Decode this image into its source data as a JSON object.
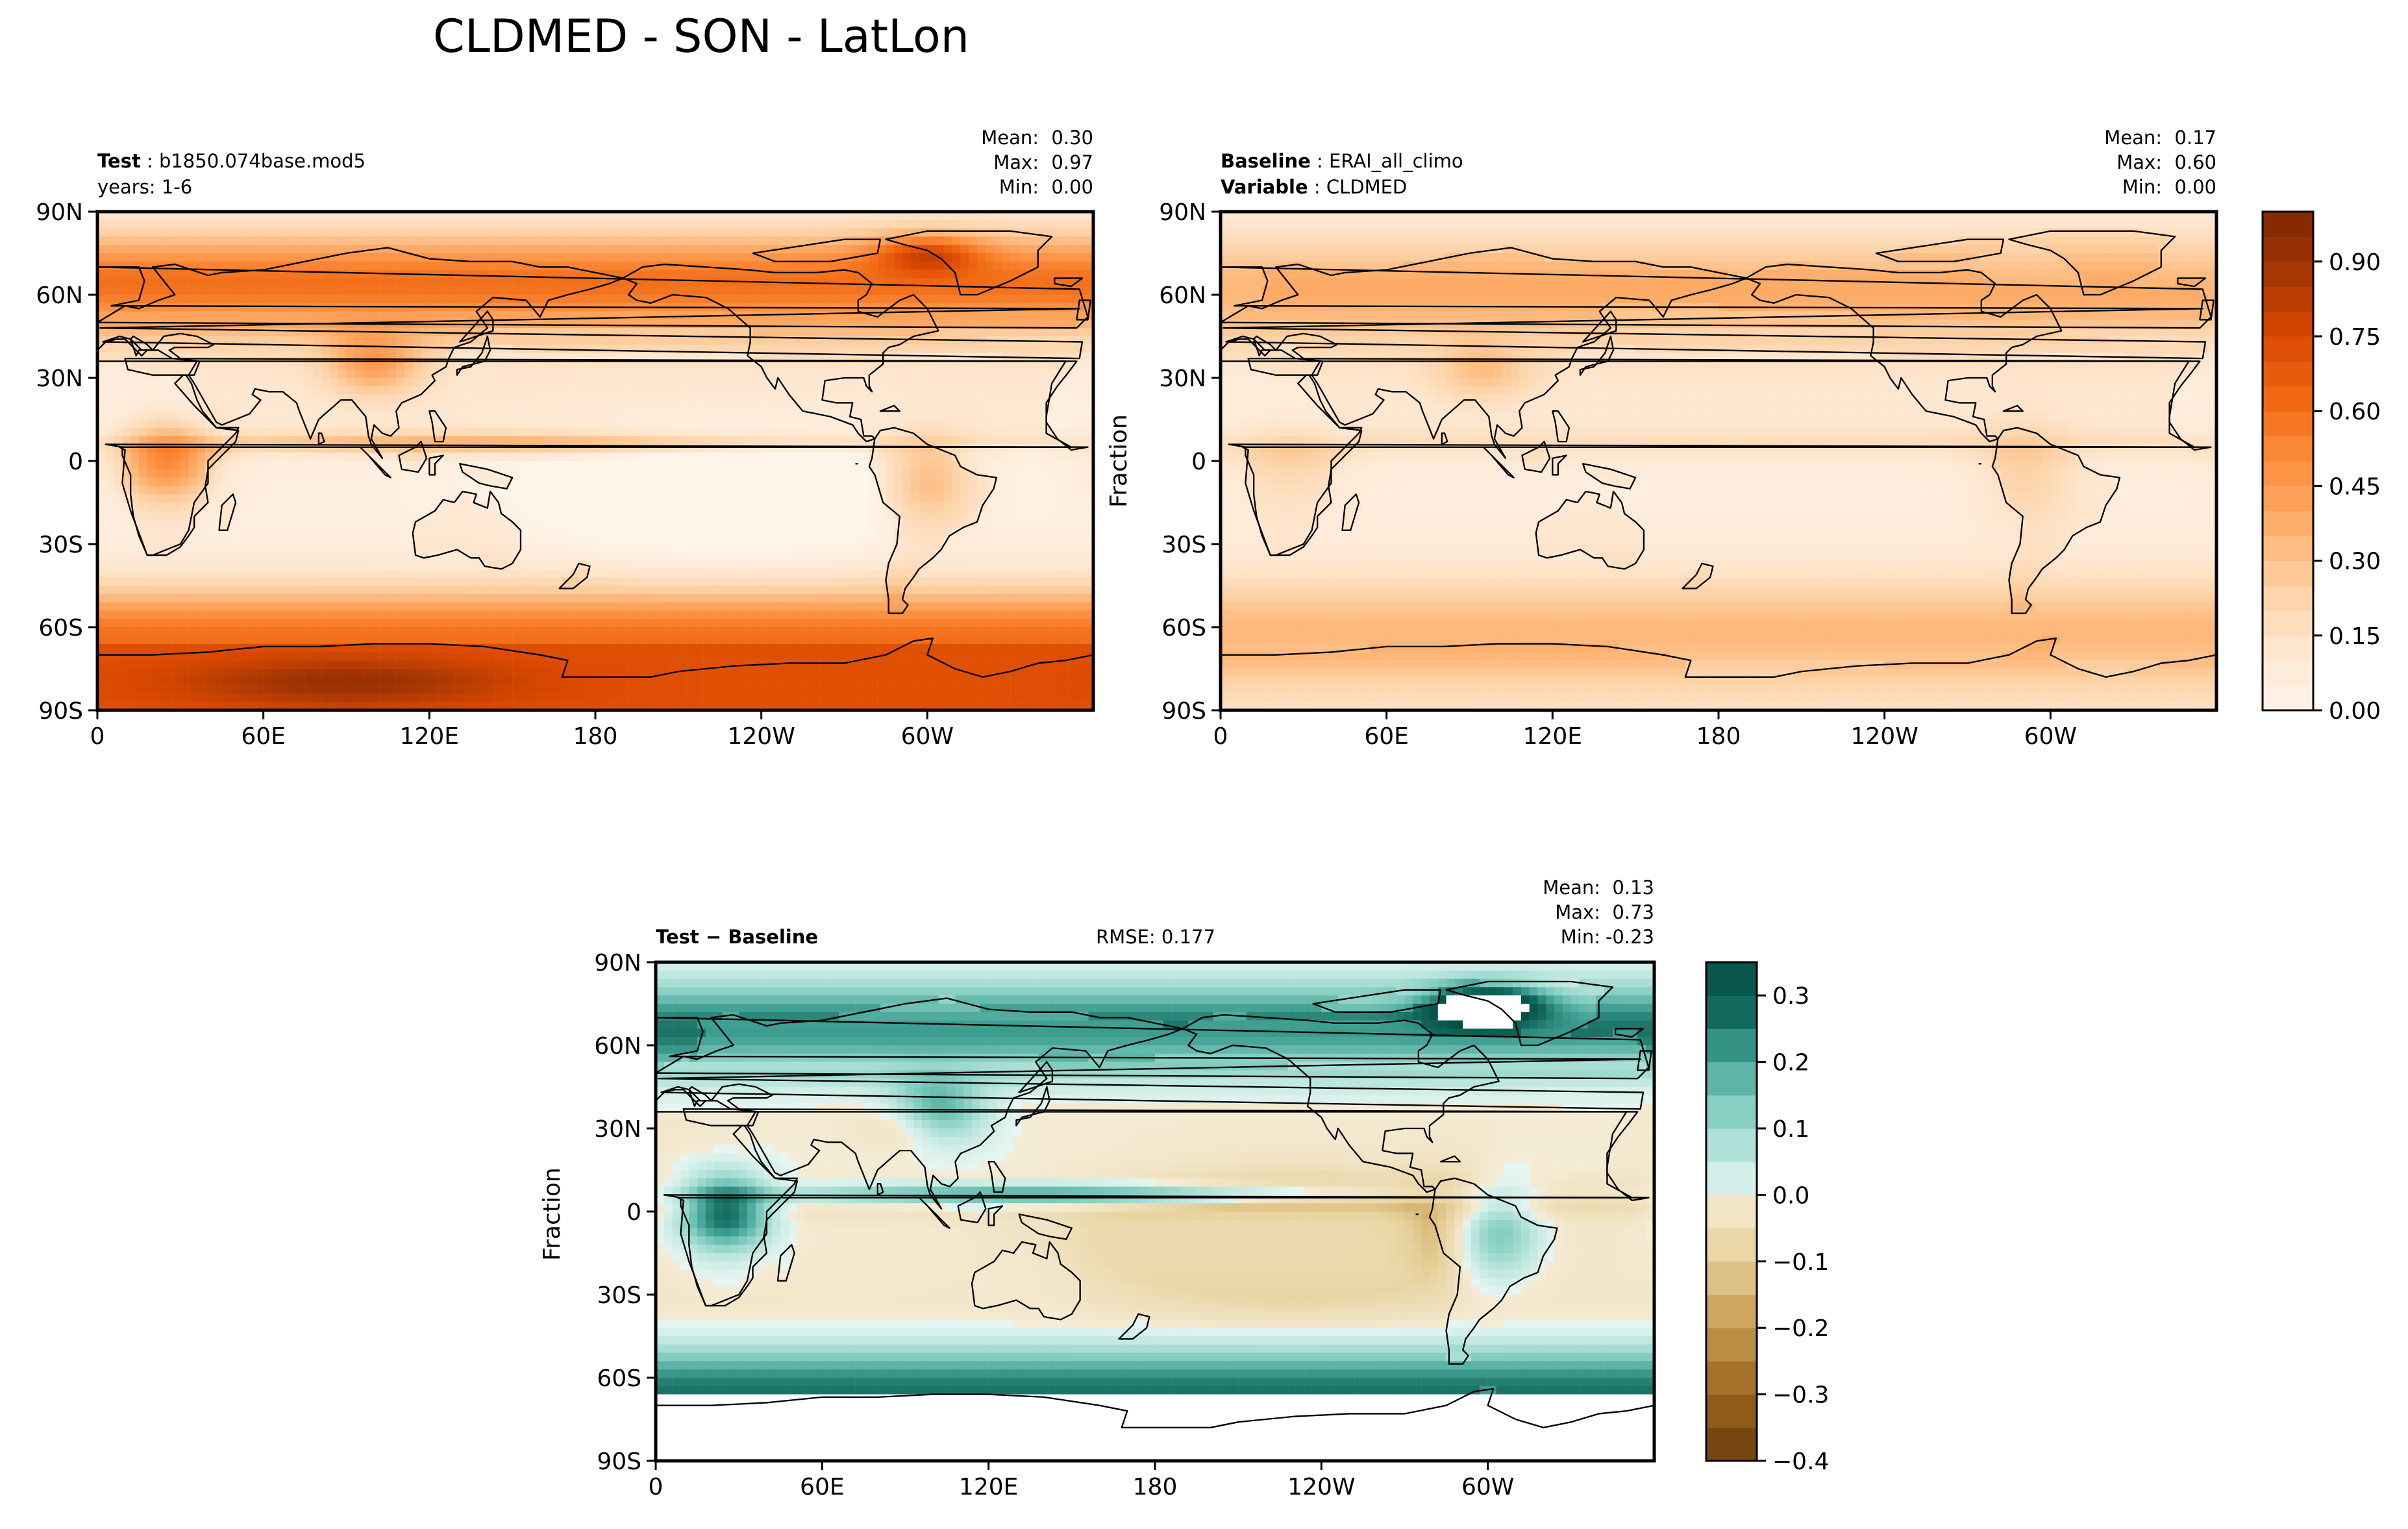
{
  "title": "CLDMED - SON - LatLon",
  "colors": {
    "test_base_ramp": [
      "#fff5eb",
      "#fee6ce",
      "#fdd0a2",
      "#fdae6b",
      "#fd8d3c",
      "#f16913",
      "#d94801",
      "#a63603",
      "#7f2704"
    ],
    "diff_ramp_neg": [
      "#f5ecd6",
      "#e6cf97",
      "#c59a50",
      "#9a6520",
      "#6a3d0a"
    ],
    "diff_ramp_pos": [
      "#e6f5f1",
      "#b4e3da",
      "#7ccabd",
      "#3f9f92",
      "#12665b",
      "#024d43"
    ]
  },
  "chart_data": [
    {
      "type": "heatmap",
      "name": "test-panel",
      "label_bold": "Test",
      "label_value": "b1850.074base.mod5",
      "sublabel": "years: 1-6",
      "stats": {
        "mean_label": "Mean:",
        "mean": "0.30",
        "max_label": "Max:",
        "max": "0.97",
        "min_label": "Min:",
        "min": "0.00"
      },
      "xticks": [
        "0",
        "60E",
        "120E",
        "180",
        "120W",
        "60W"
      ],
      "yticks": [
        "90N",
        "60N",
        "30N",
        "0",
        "30S",
        "60S",
        "90S"
      ],
      "xlim": [
        0,
        360
      ],
      "ylim": [
        -90,
        90
      ],
      "ylabel": "",
      "field": "test"
    },
    {
      "type": "heatmap",
      "name": "baseline-panel",
      "label_bold": "Baseline",
      "label_value": "ERAI_all_climo",
      "label2_bold": "Variable",
      "label2_value": "CLDMED",
      "stats": {
        "mean_label": "Mean:",
        "mean": "0.17",
        "max_label": "Max:",
        "max": "0.60",
        "min_label": "Min:",
        "min": "0.00"
      },
      "xticks": [
        "0",
        "60E",
        "120E",
        "180",
        "120W",
        "60W"
      ],
      "yticks": [
        "90N",
        "60N",
        "30N",
        "0",
        "30S",
        "60S",
        "90S"
      ],
      "xlim": [
        0,
        360
      ],
      "ylim": [
        -90,
        90
      ],
      "ylabel": "Fraction",
      "field": "base",
      "colorbar": {
        "ticks": [
          "0.00",
          "0.15",
          "0.30",
          "0.45",
          "0.60",
          "0.75",
          "0.90"
        ],
        "range": [
          0,
          1.0
        ],
        "levels": 20
      }
    },
    {
      "type": "heatmap",
      "name": "diff-panel",
      "label_bold": "Test − Baseline",
      "rmse": "RMSE: 0.177",
      "stats": {
        "mean_label": "Mean:",
        "mean": "0.13",
        "max_label": "Max:",
        "max": "0.73",
        "min_label": "Min:",
        "min": "-0.23"
      },
      "xticks": [
        "0",
        "60E",
        "120E",
        "180",
        "120W",
        "60W"
      ],
      "yticks": [
        "90N",
        "60N",
        "30N",
        "0",
        "30S",
        "60S",
        "90S"
      ],
      "xlim": [
        0,
        360
      ],
      "ylim": [
        -90,
        90
      ],
      "ylabel": "Fraction",
      "field": "diff",
      "colorbar": {
        "ticks": [
          "−0.4",
          "−0.3",
          "−0.2",
          "−0.1",
          "0.0",
          "0.1",
          "0.2",
          "0.3"
        ],
        "range": [
          -0.4,
          0.35
        ],
        "levels": 15
      }
    }
  ]
}
